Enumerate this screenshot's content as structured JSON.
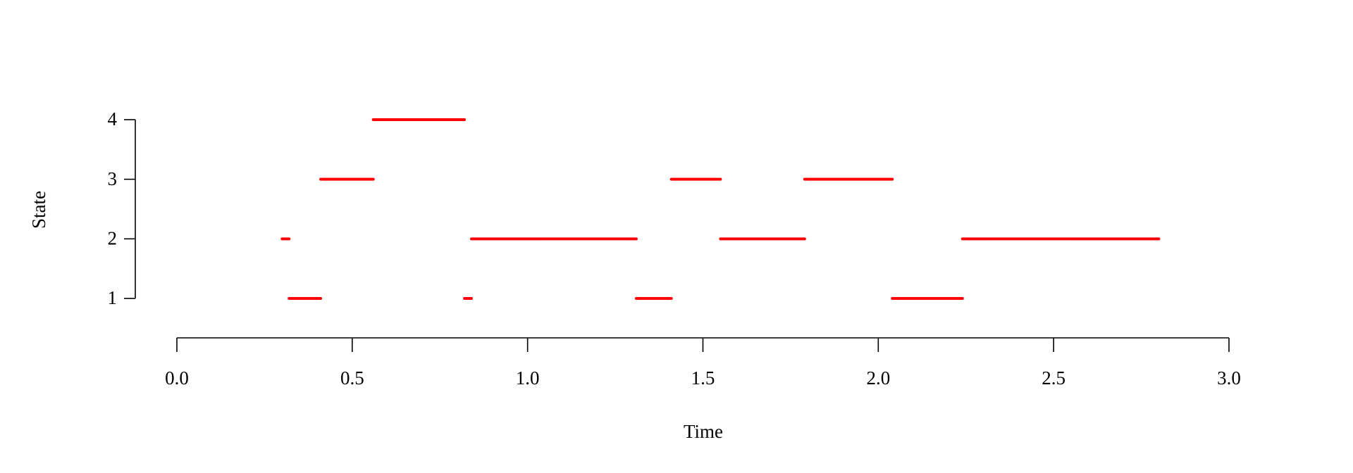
{
  "chart_data": {
    "type": "segment",
    "x_label": "Time",
    "y_label": "State",
    "x_start": [
      0.3,
      0.32,
      0.41,
      0.56,
      0.82,
      0.84,
      1.31,
      1.41,
      1.55,
      1.79,
      2.04,
      2.24
    ],
    "x_end": [
      0.32,
      0.41,
      0.56,
      0.82,
      0.84,
      1.31,
      1.41,
      1.55,
      1.79,
      2.04,
      2.24,
      2.8
    ],
    "values": [
      2,
      1,
      3,
      4,
      1,
      2,
      1,
      3,
      2,
      3,
      1,
      2
    ],
    "color": "#ff0000",
    "xlim": [
      0,
      3
    ],
    "xticks": [
      {
        "value": 0,
        "label": "0.0"
      },
      0.5,
      {
        "value": 1,
        "label": "1.0"
      },
      1.5,
      {
        "value": 2,
        "label": "2.0"
      },
      2.5,
      {
        "value": 3,
        "label": "3.0"
      }
    ],
    "ylim": [
      1,
      4
    ],
    "yticks": [
      1,
      2,
      3,
      4
    ]
  }
}
